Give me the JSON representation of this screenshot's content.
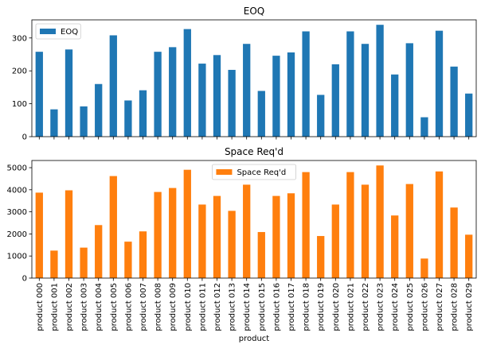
{
  "chart_data": [
    {
      "type": "bar",
      "title": "EOQ",
      "categories": [
        "product 000",
        "product 001",
        "product 002",
        "product 003",
        "product 004",
        "product 005",
        "product 006",
        "product 007",
        "product 008",
        "product 009",
        "product 010",
        "product 011",
        "product 012",
        "product 013",
        "product 014",
        "product 015",
        "product 016",
        "product 017",
        "product 018",
        "product 019",
        "product 020",
        "product 021",
        "product 022",
        "product 023",
        "product 024",
        "product 025",
        "product 026",
        "product 027",
        "product 028",
        "product 029"
      ],
      "series": [
        {
          "name": "EOQ",
          "color": "#1f77b4",
          "values": [
            258,
            83,
            265,
            92,
            160,
            308,
            110,
            141,
            258,
            272,
            327,
            222,
            248,
            203,
            282,
            139,
            246,
            256,
            320,
            127,
            220,
            320,
            282,
            340,
            189,
            284,
            59,
            322,
            213,
            131
          ]
        }
      ],
      "ylim": [
        0,
        355
      ],
      "yticks": [
        0,
        100,
        200,
        300
      ],
      "legend": "top-left",
      "xlabel": "",
      "ylabel": "",
      "show_xticklabels": false
    },
    {
      "type": "bar",
      "title": "Space Req'd",
      "categories": [
        "product 000",
        "product 001",
        "product 002",
        "product 003",
        "product 004",
        "product 005",
        "product 006",
        "product 007",
        "product 008",
        "product 009",
        "product 010",
        "product 011",
        "product 012",
        "product 013",
        "product 014",
        "product 015",
        "product 016",
        "product 017",
        "product 018",
        "product 019",
        "product 020",
        "product 021",
        "product 022",
        "product 023",
        "product 024",
        "product 025",
        "product 026",
        "product 027",
        "product 028",
        "product 029"
      ],
      "series": [
        {
          "name": "Space Req'd",
          "color": "#ff7f0e",
          "values": [
            3870,
            1245,
            3975,
            1380,
            2400,
            4620,
            1650,
            2115,
            3900,
            4080,
            4905,
            3330,
            3720,
            3045,
            4230,
            2085,
            3720,
            3840,
            4800,
            1905,
            3330,
            4800,
            4230,
            5100,
            2835,
            4260,
            885,
            4830,
            3195,
            1965
          ]
        }
      ],
      "ylim": [
        0,
        5325
      ],
      "yticks": [
        0,
        1000,
        2000,
        3000,
        4000,
        5000
      ],
      "legend": "top-center",
      "xlabel": "product",
      "ylabel": "",
      "show_xticklabels": true
    }
  ]
}
